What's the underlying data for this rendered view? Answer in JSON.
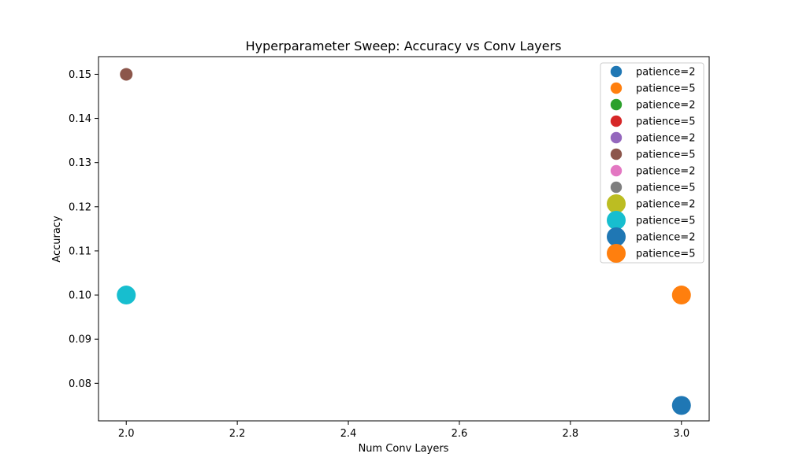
{
  "chart_data": {
    "type": "scatter",
    "title": "Hyperparameter Sweep: Accuracy vs Conv Layers",
    "xlabel": "Num Conv Layers",
    "ylabel": "Accuracy",
    "xlim": [
      1.95,
      3.05
    ],
    "ylim": [
      0.0715,
      0.154
    ],
    "xticks": [
      "2.0",
      "2.2",
      "2.4",
      "2.6",
      "2.8",
      "3.0"
    ],
    "yticks": [
      "0.08",
      "0.09",
      "0.10",
      "0.11",
      "0.12",
      "0.13",
      "0.14",
      "0.15"
    ],
    "grid": false,
    "legend_position": "upper right",
    "series": [
      {
        "name": "patience=2",
        "color": "#1f77b4",
        "marker_size": "small",
        "points": []
      },
      {
        "name": "patience=5",
        "color": "#ff7f0e",
        "marker_size": "small",
        "points": []
      },
      {
        "name": "patience=2",
        "color": "#2ca02c",
        "marker_size": "small",
        "points": []
      },
      {
        "name": "patience=5",
        "color": "#d62728",
        "marker_size": "small",
        "points": []
      },
      {
        "name": "patience=2",
        "color": "#9467bd",
        "marker_size": "small",
        "points": []
      },
      {
        "name": "patience=5",
        "color": "#8c564b",
        "marker_size": "small",
        "points": [
          {
            "x": 2.0,
            "y": 0.15
          }
        ]
      },
      {
        "name": "patience=2",
        "color": "#e377c2",
        "marker_size": "small",
        "points": []
      },
      {
        "name": "patience=5",
        "color": "#7f7f7f",
        "marker_size": "small",
        "points": []
      },
      {
        "name": "patience=2",
        "color": "#bcbd22",
        "marker_size": "large",
        "points": []
      },
      {
        "name": "patience=5",
        "color": "#17becf",
        "marker_size": "large",
        "points": [
          {
            "x": 2.0,
            "y": 0.1
          }
        ]
      },
      {
        "name": "patience=2",
        "color": "#1f77b4",
        "marker_size": "large",
        "points": [
          {
            "x": 3.0,
            "y": 0.075
          }
        ]
      },
      {
        "name": "patience=5",
        "color": "#ff7f0e",
        "marker_size": "large",
        "points": [
          {
            "x": 3.0,
            "y": 0.1
          }
        ]
      }
    ]
  }
}
